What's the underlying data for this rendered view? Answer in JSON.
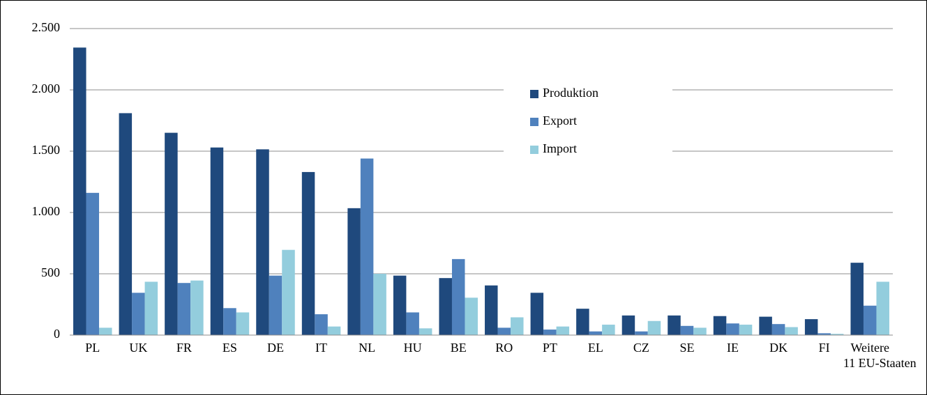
{
  "chart_data": {
    "type": "bar",
    "categories": [
      "PL",
      "UK",
      "FR",
      "ES",
      "DE",
      "IT",
      "NL",
      "HU",
      "BE",
      "RO",
      "PT",
      "EL",
      "CZ",
      "SE",
      "IE",
      "DK",
      "FI",
      "Weitere 11 EU-Staaten"
    ],
    "series": [
      {
        "name": "Produktion",
        "color": "#1f497d",
        "values": [
          2345,
          1810,
          1650,
          1530,
          1515,
          1330,
          1035,
          485,
          465,
          405,
          345,
          215,
          160,
          160,
          155,
          150,
          130,
          590
        ]
      },
      {
        "name": "Export",
        "color": "#4f81bd",
        "values": [
          1160,
          345,
          425,
          220,
          485,
          170,
          1440,
          185,
          620,
          60,
          45,
          30,
          30,
          75,
          95,
          90,
          15,
          240
        ]
      },
      {
        "name": "Import",
        "color": "#93cddd",
        "values": [
          60,
          435,
          445,
          185,
          695,
          70,
          500,
          55,
          305,
          145,
          70,
          85,
          115,
          60,
          85,
          65,
          10,
          435
        ]
      }
    ],
    "ylim": [
      0,
      2500
    ],
    "yticks": [
      0,
      500,
      {
        "value": 1000,
        "label": "1.000"
      },
      {
        "value": 1500,
        "label": "1.500"
      },
      {
        "value": 2000,
        "label": "2.000"
      },
      {
        "value": 2500,
        "label": "2.500"
      }
    ],
    "grid": true,
    "legend": "top-center"
  }
}
